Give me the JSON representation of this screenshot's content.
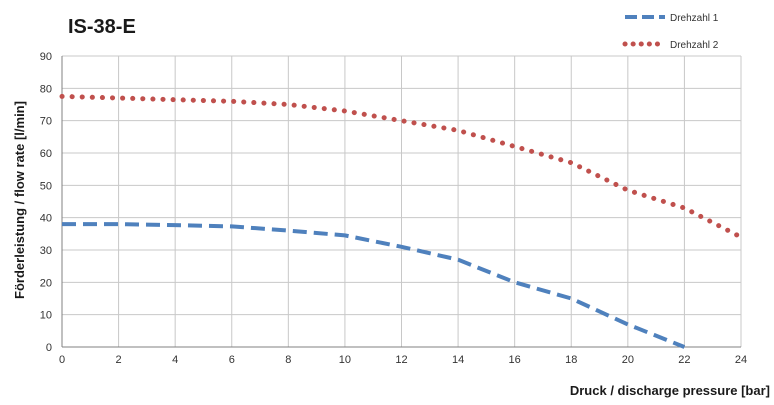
{
  "chart_data": {
    "type": "line",
    "title": "IS-38-E",
    "xlabel": "Druck / discharge pressure [bar]",
    "ylabel": "Förderleistung / flow rate [l/min]",
    "xlim": [
      0,
      24
    ],
    "ylim": [
      0,
      90
    ],
    "x_ticks": [
      "0",
      "2",
      "4",
      "6",
      "8",
      "10",
      "12",
      "14",
      "16",
      "18",
      "20",
      "22",
      "24"
    ],
    "y_ticks": [
      "0",
      "10",
      "20",
      "30",
      "40",
      "50",
      "60",
      "70",
      "80",
      "90"
    ],
    "grid": true,
    "legend_position": "top-right",
    "series": [
      {
        "name": "Drehzahl 1",
        "color": "#4f81bd",
        "style": "dashed",
        "points": [
          [
            0,
            38
          ],
          [
            2,
            38
          ],
          [
            4,
            37.7
          ],
          [
            6,
            37.3
          ],
          [
            8,
            36
          ],
          [
            10,
            34.5
          ],
          [
            12,
            31
          ],
          [
            14,
            27
          ],
          [
            16,
            20
          ],
          [
            18,
            15
          ],
          [
            20,
            7
          ],
          [
            22,
            0
          ]
        ]
      },
      {
        "name": "Drehzahl 2",
        "color": "#c0504d",
        "style": "dotted",
        "points": [
          [
            0,
            77.5
          ],
          [
            2,
            77
          ],
          [
            4,
            76.5
          ],
          [
            6,
            76
          ],
          [
            8,
            75
          ],
          [
            10,
            73
          ],
          [
            12,
            70
          ],
          [
            14,
            67
          ],
          [
            16,
            62
          ],
          [
            18,
            57
          ],
          [
            20,
            48.5
          ],
          [
            22,
            43
          ],
          [
            24,
            34
          ]
        ]
      }
    ]
  }
}
